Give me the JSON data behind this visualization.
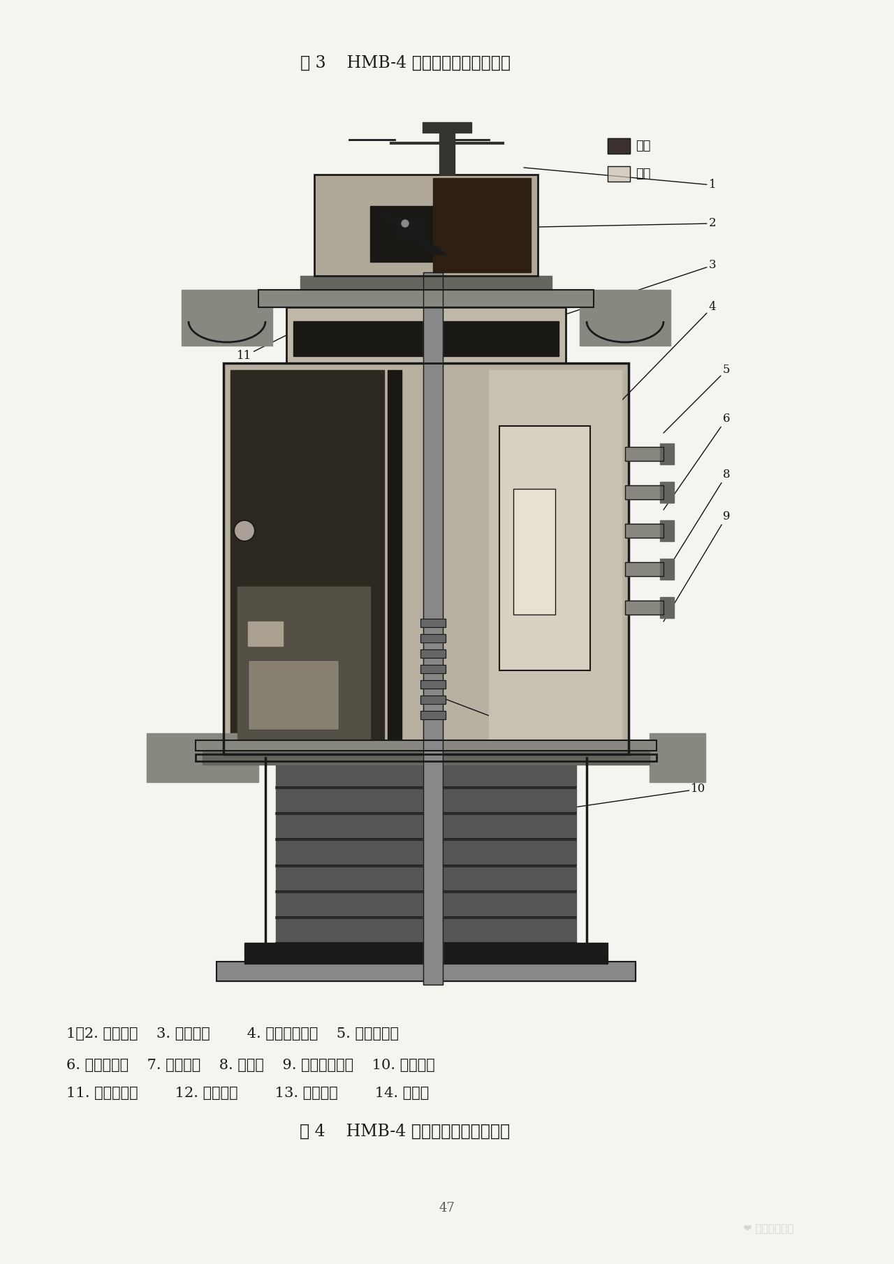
{
  "title1": "图 3    HMB-4 液压弹簧机构合闸位置",
  "title2": "图 4    HMB-4 液压弹簧机构分闸位置",
  "legend_high": "高压",
  "legend_low": "低压",
  "caption_line1": "1，2. 辅助开关    3. 低压接头        4. 合闸节流螺塞    5. 合闸控制阀",
  "caption_line2": "6. 分闸控制阀    7. 控制模块    8. 换向阀    9. 分闸节流螺塞    10. 碟簧装置",
  "caption_line3": "11. 油位观察窗        12. 贮能模块        13. 贮能活塞        14. 支撑环",
  "page_number": "47",
  "watermark": "电力专家联盟",
  "bg_color": "#f5f5f0",
  "text_color": "#1a1a1a",
  "dark": "#1a1a1a",
  "gray_mid": "#666666",
  "gray_light": "#aaaaaa",
  "gray_vlight": "#cccccc",
  "title_fontsize": 17,
  "caption_fontsize": 15,
  "page_fontsize": 13,
  "label_fontsize": 12
}
